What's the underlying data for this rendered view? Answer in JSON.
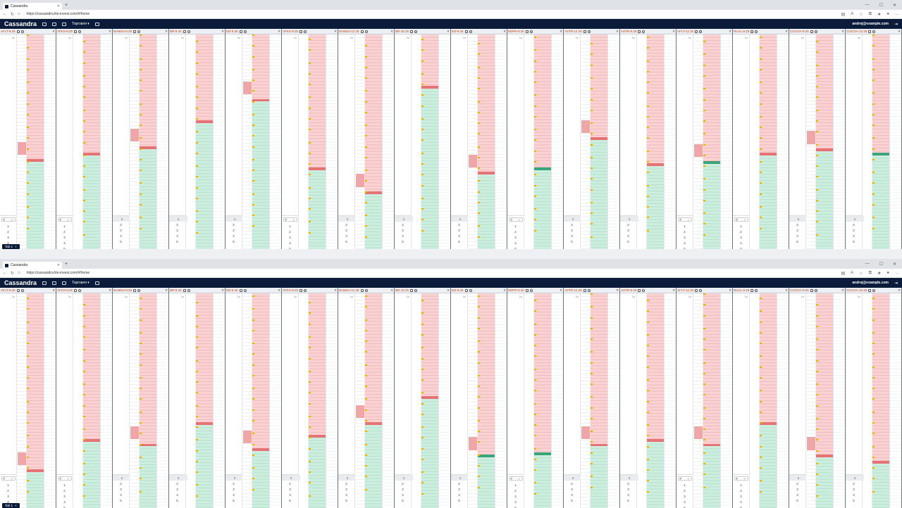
{
  "browser": {
    "tab_title": "Cassandra",
    "url": "https://cassandra.lite-invest.com/#/home"
  },
  "app": {
    "logo": "Cassandra",
    "menu_label": "Торговля",
    "user_email": "andrej@example.com",
    "bottom_tab": "Tab 1"
  },
  "windows": [
    {
      "panels": [
        {
          "ticker": "AFLT-9.25",
          "ask_frac": 0.58,
          "spread": "red",
          "qty_style": "select"
        },
        {
          "ticker": "AFKS-9.25",
          "ask_frac": 0.55,
          "spread": "red",
          "qty_style": "select"
        },
        {
          "ticker": "BANDU-9.25",
          "ask_frac": 0.52,
          "spread": "red",
          "qty_style": "one"
        },
        {
          "ticker": "BR-9.25",
          "ask_frac": 0.4,
          "spread": "red",
          "qty_style": "one"
        },
        {
          "ticker": "ED-9.25",
          "ask_frac": 0.3,
          "spread": "red",
          "qty_style": "one"
        },
        {
          "ticker": "AFKS-9.25",
          "ask_frac": 0.62,
          "spread": "red",
          "qty_style": "select"
        },
        {
          "ticker": "BANDU-12.25",
          "ask_frac": 0.73,
          "spread": "red",
          "qty_style": "one"
        },
        {
          "ticker": "BR-10.25",
          "ask_frac": 0.24,
          "spread": "red",
          "qty_style": "one"
        },
        {
          "ticker": "ED-9.25",
          "ask_frac": 0.64,
          "spread": "red",
          "qty_style": "one"
        },
        {
          "ticker": "EDPR-9.25",
          "ask_frac": 0.62,
          "spread": "green",
          "qty_style": "select"
        },
        {
          "ticker": "ASTR-12.25",
          "ask_frac": 0.48,
          "spread": "red",
          "qty_style": "one"
        },
        {
          "ticker": "ASTR-9.25",
          "ask_frac": 0.6,
          "spread": "red",
          "qty_style": "one"
        },
        {
          "ticker": "AFLT-12.25",
          "ask_frac": 0.59,
          "spread": "green",
          "qty_style": "select"
        },
        {
          "ticker": "RUAL-9.25",
          "ask_frac": 0.55,
          "spread": "red",
          "qty_style": "select"
        },
        {
          "ticker": "COCOA-9.25",
          "ask_frac": 0.53,
          "spread": "red",
          "qty_style": "one"
        },
        {
          "ticker": "COCOA-12.25",
          "ask_frac": 0.55,
          "spread": "green",
          "qty_style": "one"
        }
      ]
    },
    {
      "panels": [
        {
          "ticker": "AFLT-9.25",
          "ask_frac": 0.82,
          "spread": "red",
          "qty_style": "select"
        },
        {
          "ticker": "AFKS-9.25",
          "ask_frac": 0.68,
          "spread": "red",
          "qty_style": "select"
        },
        {
          "ticker": "BANDU-9.25",
          "ask_frac": 0.7,
          "spread": "red",
          "qty_style": "one"
        },
        {
          "ticker": "BR-9.25",
          "ask_frac": 0.6,
          "spread": "red",
          "qty_style": "one"
        },
        {
          "ticker": "ED-9.25",
          "ask_frac": 0.72,
          "spread": "red",
          "qty_style": "one"
        },
        {
          "ticker": "AFKS-9.25",
          "ask_frac": 0.66,
          "spread": "red",
          "qty_style": "one"
        },
        {
          "ticker": "BANDU-12.25",
          "ask_frac": 0.6,
          "spread": "red",
          "qty_style": "one"
        },
        {
          "ticker": "BR-10.25",
          "ask_frac": 0.48,
          "spread": "red",
          "qty_style": "one"
        },
        {
          "ticker": "ED-9.25",
          "ask_frac": 0.75,
          "spread": "green",
          "qty_style": "one"
        },
        {
          "ticker": "EDPR-9.25",
          "ask_frac": 0.74,
          "spread": "green",
          "qty_style": "select"
        },
        {
          "ticker": "ASTR-12.25",
          "ask_frac": 0.7,
          "spread": "red",
          "qty_style": "one"
        },
        {
          "ticker": "ASTR-9.25",
          "ask_frac": 0.68,
          "spread": "red",
          "qty_style": "one"
        },
        {
          "ticker": "AFLT-12.25",
          "ask_frac": 0.7,
          "spread": "red",
          "qty_style": "select"
        },
        {
          "ticker": "RUAL-9.25",
          "ask_frac": 0.6,
          "spread": "red",
          "qty_style": "select"
        },
        {
          "ticker": "COCOA-9.25",
          "ask_frac": 0.75,
          "spread": "red",
          "qty_style": "one"
        },
        {
          "ticker": "COCOA-12.25",
          "ask_frac": 0.78,
          "spread": "red",
          "qty_style": "one"
        }
      ]
    }
  ],
  "qty_select_label": "F",
  "qty_values": [
    "1",
    "2",
    "3",
    "4",
    "5"
  ],
  "col_header": "1x",
  "colors": {
    "app_bar": "#0b1b3a",
    "ask": "#f4b9b9",
    "bid": "#b4e3cd",
    "spread_red": "#e57373",
    "spread_green": "#3aa57a",
    "ticker": "#c2410c"
  }
}
